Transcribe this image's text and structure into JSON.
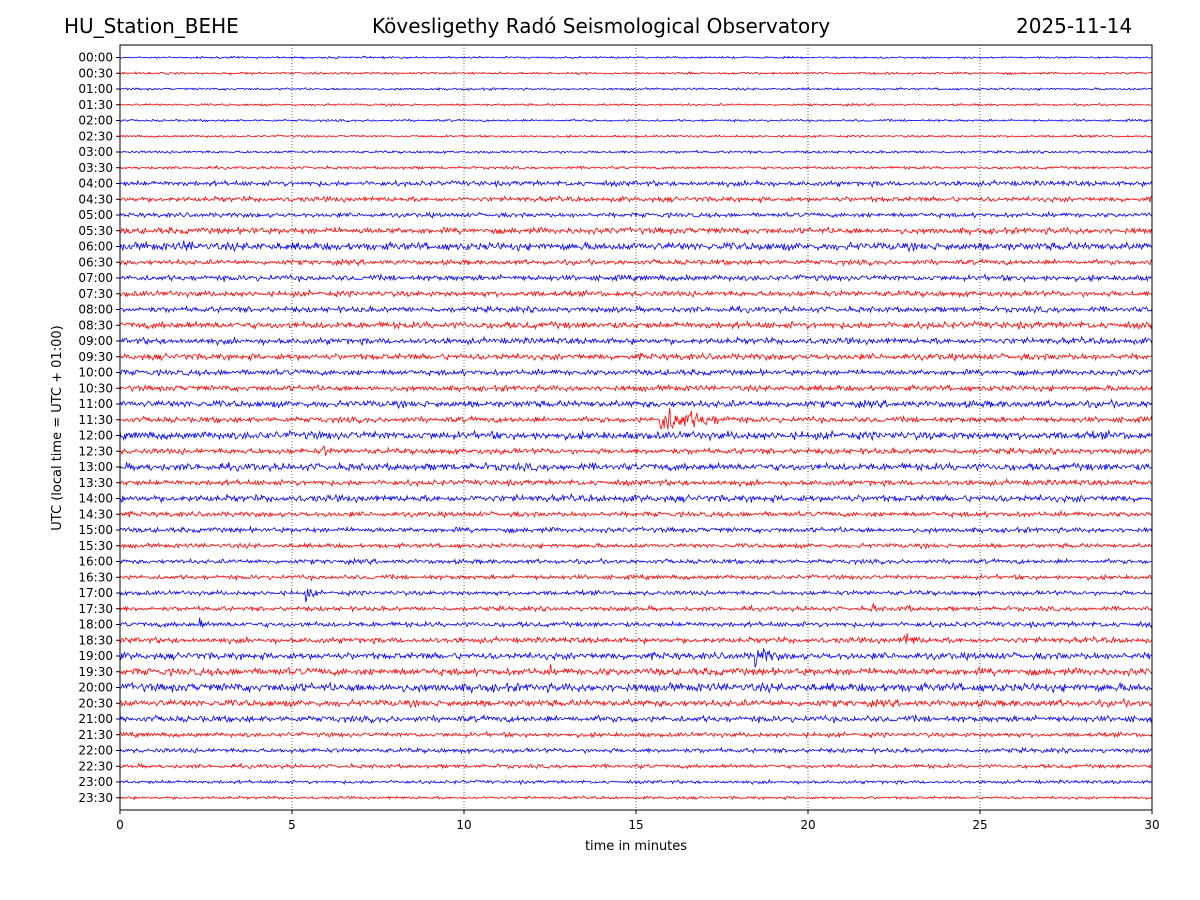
{
  "header": {
    "station": "HU_Station_BEHE",
    "observatory": "Kövesligethy Radó Seismological Observatory",
    "date": "2025-11-14"
  },
  "chart_data": {
    "type": "line",
    "title": "Kövesligethy Radó Seismological Observatory",
    "xlabel": "time in minutes",
    "ylabel": "UTC (local time = UTC + 01:00)",
    "xlim": [
      0,
      30
    ],
    "xticks": [
      0,
      5,
      10,
      15,
      20,
      25,
      30
    ],
    "vertical_gridlines": [
      5,
      10,
      15,
      20,
      25
    ],
    "colors": {
      "even_row": "#0000ff",
      "odd_row": "#ff0000"
    },
    "rows": [
      "00:00",
      "00:30",
      "01:00",
      "01:30",
      "02:00",
      "02:30",
      "03:00",
      "03:30",
      "04:00",
      "04:30",
      "05:00",
      "05:30",
      "06:00",
      "06:30",
      "07:00",
      "07:30",
      "08:00",
      "08:30",
      "09:00",
      "09:30",
      "10:00",
      "10:30",
      "11:00",
      "11:30",
      "12:00",
      "12:30",
      "13:00",
      "13:30",
      "14:00",
      "14:30",
      "15:00",
      "15:30",
      "16:00",
      "16:30",
      "17:00",
      "17:30",
      "18:00",
      "18:30",
      "19:00",
      "19:30",
      "20:00",
      "20:30",
      "21:00",
      "21:30",
      "22:00",
      "22:30",
      "23:00",
      "23:30"
    ],
    "noise_level": [
      0.7,
      0.8,
      0.8,
      0.8,
      0.8,
      0.8,
      0.9,
      1.0,
      1.8,
      1.8,
      1.6,
      2.2,
      2.8,
      1.8,
      2.0,
      2.0,
      2.0,
      2.4,
      2.2,
      2.2,
      2.0,
      2.0,
      2.4,
      2.0,
      2.8,
      2.0,
      2.6,
      2.0,
      2.4,
      1.8,
      1.8,
      1.6,
      1.6,
      1.6,
      1.6,
      1.6,
      1.8,
      2.0,
      2.4,
      2.6,
      3.0,
      2.4,
      2.2,
      1.6,
      1.6,
      1.4,
      1.2,
      1.0
    ],
    "events": [
      {
        "row": "04:00",
        "time": 18.5,
        "amplitude": 4,
        "duration": 1.5
      },
      {
        "row": "05:30",
        "time": 3.8,
        "amplitude": 4,
        "duration": 1.5
      },
      {
        "row": "05:30",
        "time": 27.5,
        "amplitude": 3,
        "duration": 1.0
      },
      {
        "row": "06:00",
        "time": 1.8,
        "amplitude": 5,
        "duration": 2.5
      },
      {
        "row": "06:00",
        "time": 4.0,
        "amplitude": 6,
        "duration": 0.4
      },
      {
        "row": "07:00",
        "time": 16.4,
        "amplitude": 4,
        "duration": 0.8
      },
      {
        "row": "09:30",
        "time": 11.0,
        "amplitude": 3,
        "duration": 1.0
      },
      {
        "row": "11:30",
        "time": 15.7,
        "amplitude": 12,
        "duration": 3.5
      },
      {
        "row": "12:30",
        "time": 5.9,
        "amplitude": 5,
        "duration": 0.8
      },
      {
        "row": "17:00",
        "time": 5.4,
        "amplitude": 6,
        "duration": 0.8
      },
      {
        "row": "17:30",
        "time": 21.9,
        "amplitude": 5,
        "duration": 0.5
      },
      {
        "row": "17:30",
        "time": 22.8,
        "amplitude": 4,
        "duration": 0.8
      },
      {
        "row": "18:00",
        "time": 2.3,
        "amplitude": 6,
        "duration": 0.5
      },
      {
        "row": "18:30",
        "time": 22.8,
        "amplitude": 6,
        "duration": 1.5
      },
      {
        "row": "19:00",
        "time": 18.4,
        "amplitude": 10,
        "duration": 1.6
      },
      {
        "row": "19:30",
        "time": 12.5,
        "amplitude": 5,
        "duration": 0.3
      },
      {
        "row": "20:00",
        "time": 5.0,
        "amplitude": 5,
        "duration": 0.8
      },
      {
        "row": "22:30",
        "time": 15.1,
        "amplitude": 4,
        "duration": 0.2
      }
    ]
  }
}
